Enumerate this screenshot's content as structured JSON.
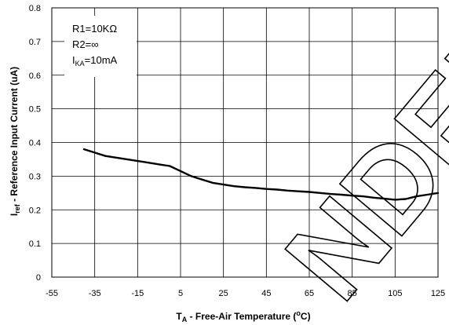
{
  "chart_data": {
    "type": "line",
    "title": "",
    "xlabel": {
      "main": "T",
      "sub": "A",
      "mid": " - Free-Air Temperature (",
      "sup": "o",
      "end": "C)"
    },
    "ylabel": {
      "main": "I",
      "sub": "ref",
      "end": " - Reference Input Current (uA)"
    },
    "xlim": [
      -55,
      125
    ],
    "ylim": [
      0,
      0.8
    ],
    "x_ticks": [
      "-55",
      "-35",
      "-15",
      "5",
      "25",
      "45",
      "65",
      "85",
      "105",
      "125"
    ],
    "y_ticks": [
      "0",
      "0.1",
      "0.2",
      "0.3",
      "0.4",
      "0.5",
      "0.6",
      "0.7",
      "0.8"
    ],
    "grid": true,
    "annotations": [
      {
        "main": "R1=10KΩ"
      },
      {
        "main": "R2=∞"
      },
      {
        "main": "I",
        "sub": "KA",
        "end": "=10mA"
      }
    ],
    "series": [
      {
        "color": "#000000",
        "x": [
          -40,
          -35,
          -30,
          -25,
          -20,
          -15,
          -10,
          -5,
          0,
          5,
          10,
          15,
          20,
          25,
          30,
          35,
          40,
          45,
          50,
          55,
          60,
          65,
          70,
          75,
          80,
          85,
          90,
          95,
          100,
          105,
          110,
          115,
          120,
          125
        ],
        "y": [
          0.38,
          0.37,
          0.36,
          0.355,
          0.35,
          0.345,
          0.34,
          0.335,
          0.33,
          0.315,
          0.3,
          0.29,
          0.28,
          0.275,
          0.27,
          0.267,
          0.265,
          0.262,
          0.26,
          0.257,
          0.255,
          0.253,
          0.25,
          0.247,
          0.245,
          0.242,
          0.24,
          0.236,
          0.233,
          0.23,
          0.232,
          0.24,
          0.245,
          0.25
        ]
      }
    ]
  },
  "watermark": {
    "text": "NDED"
  }
}
